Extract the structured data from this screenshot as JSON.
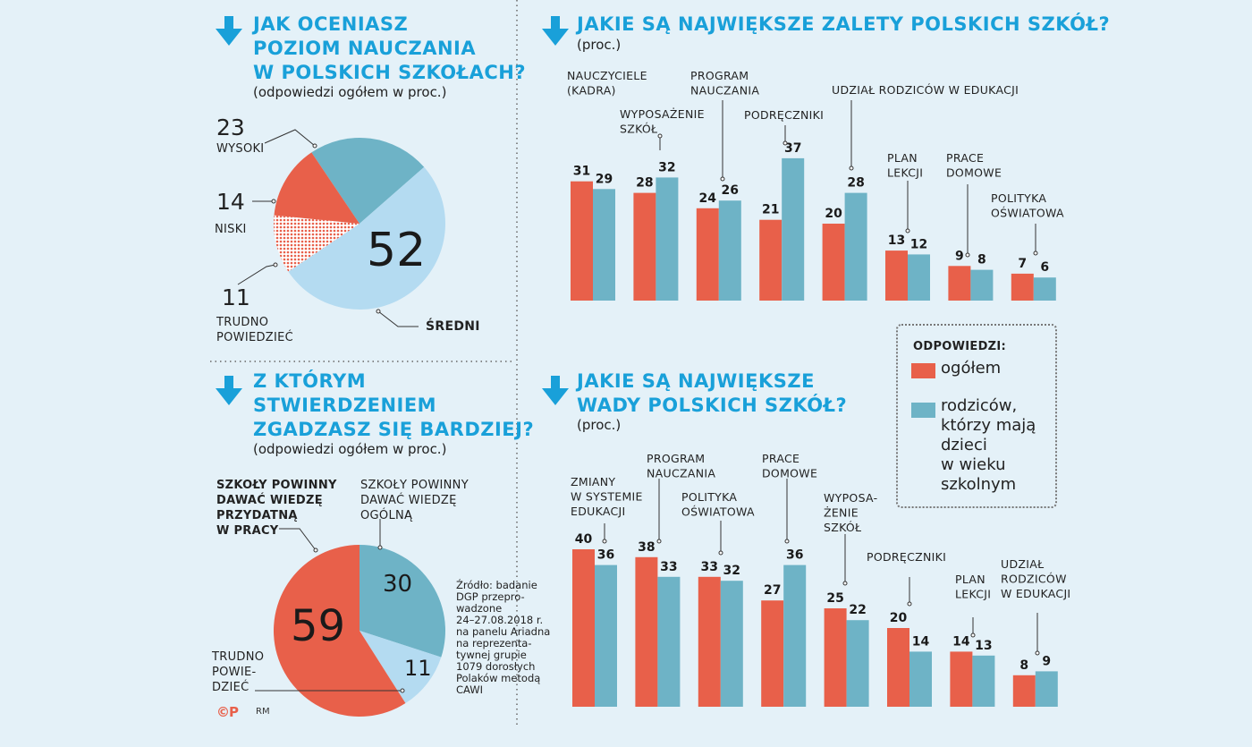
{
  "colors": {
    "overall": "#e8604a",
    "parents": "#6eb3c6",
    "pie_dark": "#6eb3c6",
    "pie_light": "#b4dbf1",
    "pie_red": "#e8604a",
    "heading": "#19a0d9",
    "bg": "#e4f1f8"
  },
  "q1": {
    "title_lines": [
      "JAK OCENIASZ",
      "POZIOM NAUCZANIA",
      "W POLSKICH SZKOŁACH?"
    ],
    "subtitle": "(odpowiedzi ogółem w proc.)",
    "labels": {
      "wysoki_num": "23",
      "wysoki": "WYSOKI",
      "niski_num": "14",
      "niski": "NISKI",
      "trudno_num": "11",
      "trudno_lines": [
        "TRUDNO",
        "POWIEDZIEĆ"
      ],
      "sredni_num": "52",
      "sredni": "ŚREDNI"
    }
  },
  "q2": {
    "title_lines": [
      "Z KTÓRYM",
      "STWIERDZENIEM",
      "ZGADZASZ SIĘ BARDZIEJ?"
    ],
    "subtitle": "(odpowiedzi ogółem w proc.)",
    "labels": {
      "praca_lines": [
        "SZKOŁY POWINNY",
        "DAWAĆ WIEDZĘ",
        "PRZYDATNĄ",
        "W PRACY"
      ],
      "ogolna_lines": [
        "SZKOŁY POWINNY",
        "DAWAĆ WIEDZĘ",
        "OGÓLNĄ"
      ],
      "trudno_lines": [
        "TRUDNO",
        "POWIE-",
        "DZIEĆ"
      ],
      "praca_num": "59",
      "ogolna_num": "30",
      "trudno_num": "11"
    }
  },
  "zalety": {
    "title": "JAKIE SĄ NAJWIĘKSZE ZALETY POLSKICH SZKÓŁ?",
    "subtitle": "(proc.)"
  },
  "wady": {
    "title_lines": [
      "JAKIE SĄ NAJWIĘKSZE",
      "WADY POLSKICH SZKÓŁ?"
    ],
    "subtitle": "(proc.)"
  },
  "legend": {
    "title": "ODPOWIEDZI:",
    "overall": "ogółem",
    "parents_lines": [
      "rodziców,",
      "którzy mają",
      "dzieci",
      "w wieku",
      "szkolnym"
    ]
  },
  "source_lines": [
    "Źródło: badanie",
    "DGP przepro-",
    "wadzone",
    "24–27.08.2018 r.",
    "na panelu Ariadna",
    "na reprezenta-",
    "tywnej grupie",
    "1079 dorosłych",
    "Polaków metodą",
    "CAWI"
  ],
  "credits": {
    "logo": "©P",
    "author": "RM"
  },
  "chart_data": [
    {
      "type": "pie",
      "title": "JAK OCENIASZ POZIOM NAUCZANIA W POLSKICH SZKOŁACH?",
      "slices": [
        {
          "label": "WYSOKI",
          "value": 23
        },
        {
          "label": "ŚREDNI",
          "value": 52
        },
        {
          "label": "TRUDNO POWIEDZIEĆ",
          "value": 11
        },
        {
          "label": "NISKI",
          "value": 14
        }
      ]
    },
    {
      "type": "pie",
      "title": "Z KTÓRYM STWIERDZENIEM ZGADZASZ SIĘ BARDZIEJ?",
      "slices": [
        {
          "label": "SZKOŁY POWINNY DAWAĆ WIEDZĘ OGÓLNĄ",
          "value": 30
        },
        {
          "label": "TRUDNO POWIEDZIEĆ",
          "value": 11
        },
        {
          "label": "SZKOŁY POWINNY DAWAĆ WIEDZĘ PRZYDATNĄ W PRACY",
          "value": 59
        }
      ]
    },
    {
      "type": "bar",
      "title": "JAKIE SĄ NAJWIĘKSZE ZALETY POLSKICH SZKÓŁ?",
      "categories": [
        [
          "NAUCZYCIELE",
          "(KADRA)"
        ],
        [
          "WYPOSAŻENIE",
          "SZKÓŁ"
        ],
        [
          "PROGRAM",
          "NAUCZANIA"
        ],
        [
          "PODRĘCZNIKI"
        ],
        [
          "UDZIAŁ RODZICÓW W EDUKACJI"
        ],
        [
          "PLAN",
          "LEKCJI"
        ],
        [
          "PRACE",
          "DOMOWE"
        ],
        [
          "POLITYKA",
          "OŚWIATOWA"
        ]
      ],
      "series": [
        {
          "name": "ogółem",
          "values": [
            31,
            28,
            24,
            21,
            20,
            13,
            9,
            7
          ]
        },
        {
          "name": "rodziców, którzy mają dzieci w wieku szkolnym",
          "values": [
            29,
            32,
            26,
            37,
            28,
            12,
            8,
            6
          ]
        }
      ]
    },
    {
      "type": "bar",
      "title": "JAKIE SĄ NAJWIĘKSZE WADY POLSKICH SZKÓŁ?",
      "categories": [
        [
          "ZMIANY",
          "W SYSTEMIE",
          "EDUKACJI"
        ],
        [
          "PROGRAM",
          "NAUCZANIA"
        ],
        [
          "POLITYKA",
          "OŚWIATOWA"
        ],
        [
          "PRACE",
          "DOMOWE"
        ],
        [
          "WYPOSA-",
          "ŻENIE",
          "SZKÓŁ"
        ],
        [
          "PODRĘCZNIKI"
        ],
        [
          "PLAN",
          "LEKCJI"
        ],
        [
          "UDZIAŁ",
          "RODZICÓW",
          "W EDUKACJI"
        ]
      ],
      "series": [
        {
          "name": "ogółem",
          "values": [
            40,
            38,
            33,
            27,
            25,
            20,
            14,
            8
          ]
        },
        {
          "name": "rodziców, którzy mają dzieci w wieku szkolnym",
          "values": [
            36,
            33,
            32,
            36,
            22,
            14,
            13,
            9
          ]
        }
      ]
    }
  ]
}
